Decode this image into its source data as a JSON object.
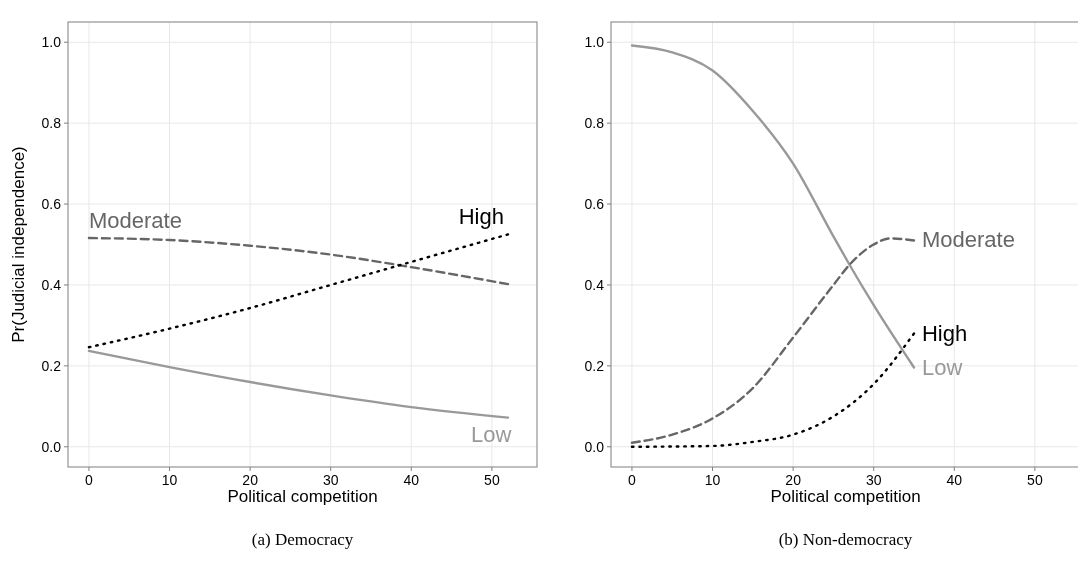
{
  "chart_data": [
    {
      "type": "line",
      "title": "(a) Democracy",
      "xlabel": "Political competition",
      "ylabel": "Pr(Judicial independence)",
      "xlim": [
        -2.6,
        55.6
      ],
      "ylim": [
        -0.05,
        1.05
      ],
      "xticks": [
        0,
        10,
        20,
        30,
        40,
        50
      ],
      "yticks": [
        {
          "value": 0,
          "label": "0.0"
        },
        {
          "value": 0.2,
          "label": "0.2"
        },
        {
          "value": 0.4,
          "label": "0.4"
        },
        {
          "value": 0.6,
          "label": "0.6"
        },
        {
          "value": 0.8,
          "label": "0.8"
        },
        {
          "value": 1,
          "label": "1.0"
        }
      ],
      "grid": true,
      "series": [
        {
          "name": "Low",
          "color": "#999999",
          "line_style": "solid",
          "x": [
            0,
            10,
            20,
            30,
            40,
            52
          ],
          "values": [
            0.237,
            0.197,
            0.16,
            0.127,
            0.098,
            0.072
          ]
        },
        {
          "name": "Moderate",
          "color": "#666666",
          "line_style": "dashed",
          "x": [
            0,
            10,
            20,
            30,
            40,
            52
          ],
          "values": [
            0.516,
            0.511,
            0.497,
            0.475,
            0.444,
            0.402
          ]
        },
        {
          "name": "High",
          "color": "#000000",
          "line_style": "dotted",
          "x": [
            0,
            10,
            20,
            30,
            40,
            52
          ],
          "values": [
            0.246,
            0.292,
            0.343,
            0.4,
            0.457,
            0.525
          ]
        }
      ]
    },
    {
      "type": "line",
      "title": "(b) Non-democracy",
      "xlabel": "Political competition",
      "xlim": [
        -2.6,
        55.6
      ],
      "ylim": [
        -0.05,
        1.05
      ],
      "xticks": [
        0,
        10,
        20,
        30,
        40,
        50
      ],
      "yticks": [
        {
          "value": 0,
          "label": "0.0"
        },
        {
          "value": 0.2,
          "label": "0.2"
        },
        {
          "value": 0.4,
          "label": "0.4"
        },
        {
          "value": 0.6,
          "label": "0.6"
        },
        {
          "value": 0.8,
          "label": "0.8"
        },
        {
          "value": 1,
          "label": "1.0"
        }
      ],
      "grid": true,
      "series": [
        {
          "name": "Low",
          "color": "#999999",
          "line_style": "solid",
          "x": [
            0,
            5,
            10,
            15,
            20,
            25,
            27,
            30,
            35
          ],
          "values": [
            0.992,
            0.975,
            0.93,
            0.83,
            0.7,
            0.52,
            0.45,
            0.35,
            0.196
          ]
        },
        {
          "name": "Moderate",
          "color": "#666666",
          "line_style": "dashed",
          "x": [
            0,
            5,
            10,
            15,
            20,
            25,
            27,
            30,
            32,
            35
          ],
          "values": [
            0.01,
            0.03,
            0.07,
            0.145,
            0.27,
            0.4,
            0.45,
            0.5,
            0.515,
            0.51
          ]
        },
        {
          "name": "High",
          "color": "#000000",
          "line_style": "dotted",
          "x": [
            0,
            10,
            15,
            20,
            25,
            30,
            35
          ],
          "values": [
            0,
            0.002,
            0.012,
            0.03,
            0.075,
            0.155,
            0.28
          ]
        }
      ]
    }
  ]
}
